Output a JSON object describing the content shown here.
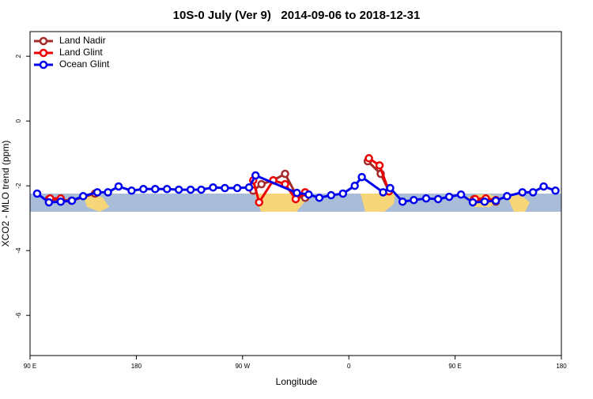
{
  "chart_data": {
    "type": "line",
    "title": "10S-0 July (Ver 9)   2014-09-06 to 2018-12-31",
    "xlabel": "Longitude",
    "ylabel": "XCO2 - MLO trend (ppm)",
    "xlim": [
      90,
      540
    ],
    "ylim": [
      -7.24,
      2.76
    ],
    "xticks": [
      {
        "value": 90,
        "label": "90 E"
      },
      180,
      {
        "value": 270,
        "label": "90 W"
      },
      {
        "value": 360,
        "label": "0"
      },
      {
        "value": 450,
        "label": "90 E"
      },
      {
        "value": 540,
        "label": "180"
      }
    ],
    "yticks": [
      2,
      0,
      -2,
      -4,
      -6
    ],
    "legend": "top-left",
    "series": [
      {
        "name": "Land Nadir",
        "color": "#a52a2a",
        "x": [
          106,
          125,
          145,
          null,
          279,
          286,
          296,
          306,
          316,
          323,
          null,
          376,
          387,
          394,
          null,
          466,
          475,
          484.5
        ],
        "values": [
          -2.41,
          -2.46,
          -2.24,
          null,
          -2.15,
          -1.95,
          -1.83,
          -1.63,
          -2.32,
          -2.37,
          null,
          -1.24,
          -1.63,
          -2.17,
          null,
          -2.41,
          -2.44,
          -2.49
        ]
      },
      {
        "name": "Land Glint",
        "color": "#ee0000",
        "x": [
          107,
          116,
          null,
          279,
          284,
          296,
          306,
          315,
          323,
          null,
          377,
          386,
          394,
          null,
          467,
          476,
          484.5
        ],
        "values": [
          -2.39,
          -2.39,
          null,
          -1.83,
          -2.51,
          -1.83,
          -1.95,
          -2.41,
          -2.2,
          null,
          -1.15,
          -1.37,
          -2.17,
          null,
          -2.41,
          -2.39,
          -2.44
        ]
      },
      {
        "name": "Ocean Glint",
        "color": "#0000ee",
        "x": [
          96,
          106,
          116,
          125.5,
          135,
          147,
          156,
          165,
          176,
          186,
          196,
          206,
          216,
          226,
          235,
          245,
          255,
          265.5,
          275.5,
          281,
          316,
          326,
          335,
          345,
          355,
          365,
          371,
          389,
          395,
          405.5,
          415,
          425.5,
          435.6,
          445,
          455,
          465,
          475,
          484.5,
          494,
          507,
          516,
          525,
          535
        ],
        "values": [
          -2.24,
          -2.51,
          -2.49,
          -2.46,
          -2.32,
          -2.2,
          -2.2,
          -2.02,
          -2.15,
          -2.1,
          -2.1,
          -2.1,
          -2.12,
          -2.12,
          -2.12,
          -2.05,
          -2.07,
          -2.07,
          -2.05,
          -1.68,
          -2.22,
          -2.27,
          -2.37,
          -2.29,
          -2.24,
          -2.0,
          -1.73,
          -2.2,
          -2.07,
          -2.49,
          -2.44,
          -2.39,
          -2.41,
          -2.34,
          -2.27,
          -2.51,
          -2.49,
          -2.46,
          -2.32,
          -2.2,
          -2.2,
          -2.02,
          -2.15
        ]
      }
    ]
  }
}
